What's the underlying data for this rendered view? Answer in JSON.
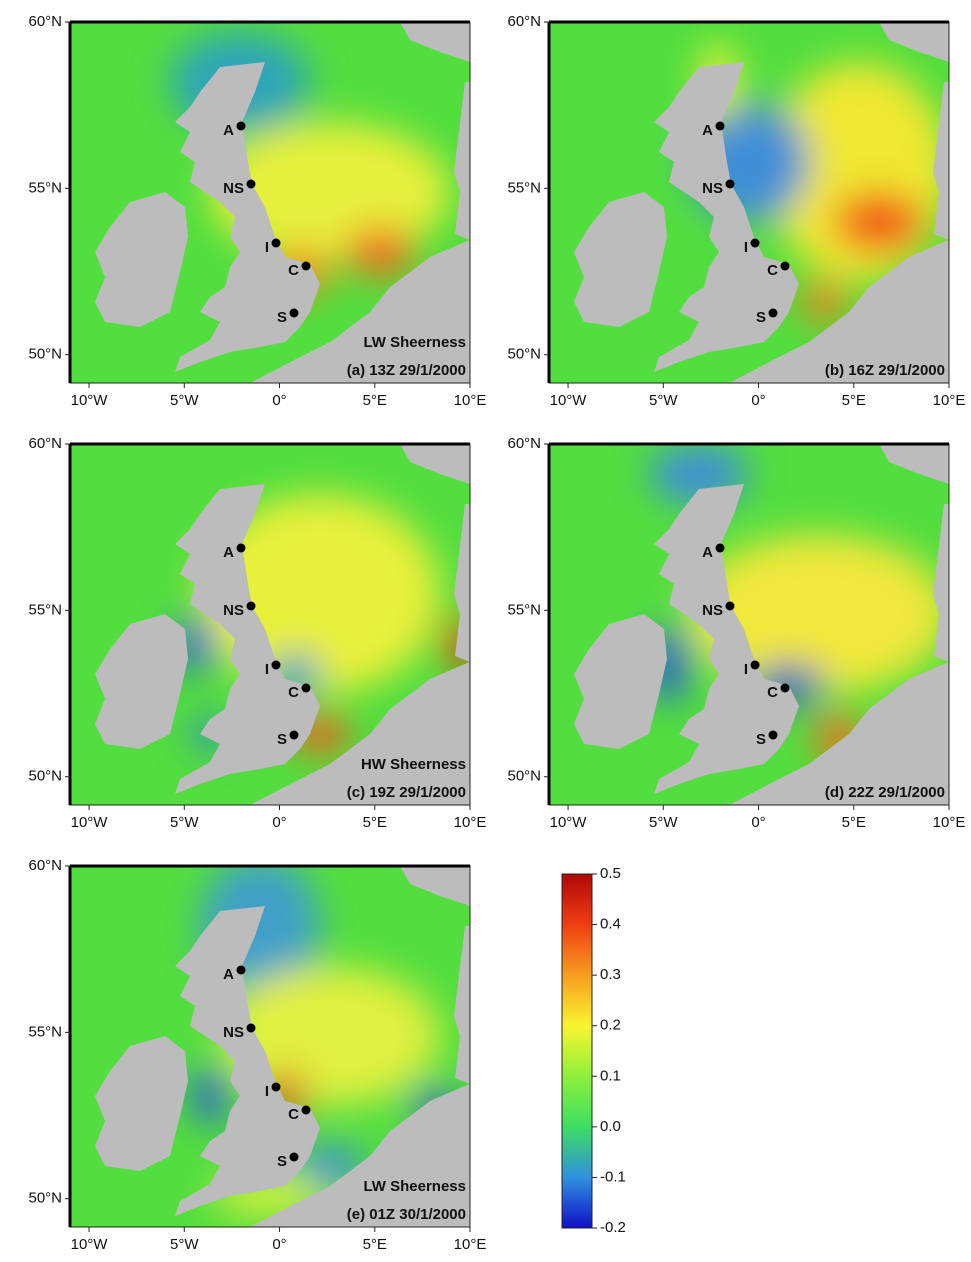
{
  "map": {
    "xlim": [
      -11,
      10
    ],
    "ylim": [
      49.15,
      60
    ],
    "lon_ticks": [
      {
        "value": -10,
        "label": "10°W"
      },
      {
        "value": -5,
        "label": "5°W"
      },
      {
        "value": 0,
        "label": "0°"
      },
      {
        "value": 5,
        "label": "5°E"
      },
      {
        "value": 10,
        "label": "10°E"
      }
    ],
    "lat_ticks": [
      {
        "value": 60,
        "label": "60°N"
      },
      {
        "value": 55,
        "label": "55°N"
      },
      {
        "value": 50,
        "label": "50°N"
      }
    ],
    "stations": [
      "A",
      "NS",
      "I",
      "C",
      "S"
    ],
    "panels": [
      {
        "tide": "LW Sheerness",
        "label": "(a)  13Z  29/1/2000"
      },
      {
        "label": "(b)  16Z  29/1/2000"
      },
      {
        "tide": "HW Sheerness",
        "label": "(c)  19Z  29/1/2000"
      },
      {
        "label": "(d)  22Z  29/1/2000"
      },
      {
        "tide": "LW Sheerness",
        "label": "(e)  01Z  30/1/2000"
      }
    ]
  },
  "colorbar": {
    "lim": [
      -0.2,
      0.5
    ],
    "ticks": [
      0.5,
      0.4,
      0.3,
      0.2,
      0.1,
      {
        "value": 0,
        "label": "0.0"
      },
      -0.1,
      -0.2
    ]
  }
}
